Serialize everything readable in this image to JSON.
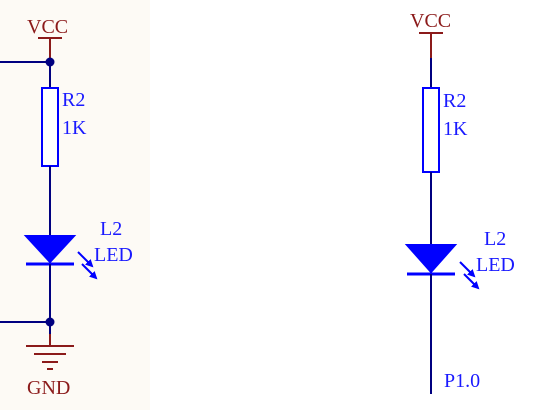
{
  "colors": {
    "power": "#8b1a1a",
    "component": "#0000ff",
    "wire": "#000080",
    "junction": "#000080",
    "label_text": "#1a1aff",
    "panel_bg": "#fdfaf5"
  },
  "circuits": [
    {
      "supply_label": "VCC",
      "resistor": {
        "designator": "R2",
        "value": "1K"
      },
      "led": {
        "designator": "L2",
        "type": "LED"
      },
      "ground_label": "GND"
    },
    {
      "supply_label": "VCC",
      "resistor": {
        "designator": "R2",
        "value": "1K"
      },
      "led": {
        "designator": "L2",
        "type": "LED"
      },
      "net_label": "P1.0"
    }
  ]
}
